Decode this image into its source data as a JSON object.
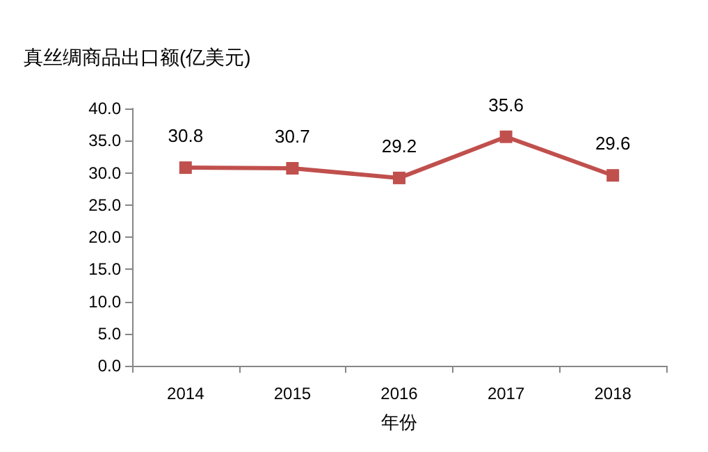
{
  "chart_data": {
    "type": "line",
    "ylabel": "真丝绸商品出口额(亿美元)",
    "xlabel": "年份",
    "categories": [
      "2014",
      "2015",
      "2016",
      "2017",
      "2018"
    ],
    "series": [
      {
        "color": "#c0504d",
        "values": [
          30.8,
          30.7,
          29.2,
          35.6,
          29.6
        ]
      }
    ],
    "ylim": [
      0,
      40
    ],
    "yticks": [
      {
        "value": 0,
        "label": "0.0"
      },
      {
        "value": 5,
        "label": "5.0"
      },
      {
        "value": 10,
        "label": "10.0"
      },
      {
        "value": 15,
        "label": "15.0"
      },
      {
        "value": 20,
        "label": "20.0"
      },
      {
        "value": 25,
        "label": "25.0"
      },
      {
        "value": 30,
        "label": "30.0"
      },
      {
        "value": 35,
        "label": "35.0"
      },
      {
        "value": 40,
        "label": "40.0"
      }
    ],
    "grid": false,
    "marker": "square",
    "line_style": "solid",
    "data_labels": true
  }
}
